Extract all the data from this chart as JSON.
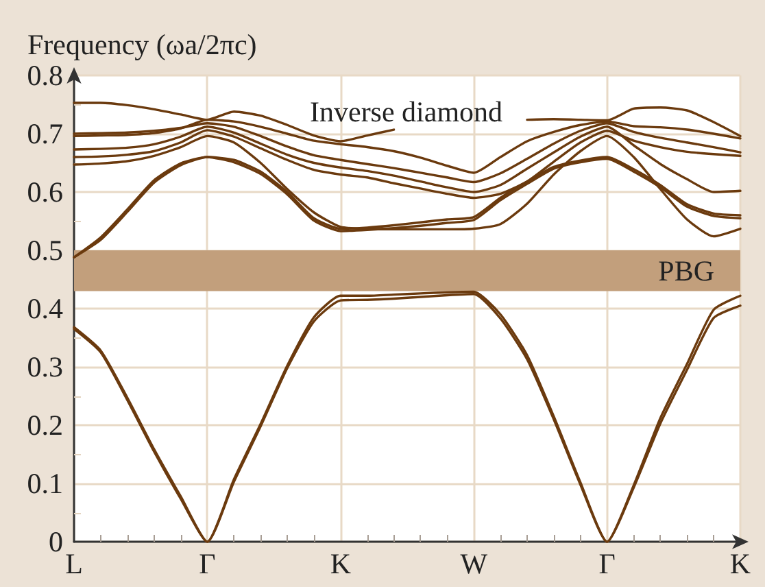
{
  "chart_data": {
    "type": "line",
    "ylabel": "Frequency (ωa/2πc)",
    "annotations": [
      "Inverse diamond"
    ],
    "categories": [
      "L",
      null,
      null,
      null,
      null,
      "Γ",
      null,
      null,
      null,
      null,
      "K",
      null,
      null,
      null,
      null,
      "W",
      null,
      null,
      null,
      null,
      "Γ",
      null,
      null,
      null,
      null,
      "K"
    ],
    "series": [
      {
        "color": "#6b3a0e",
        "values": [
          0.365,
          0.325,
          0.243,
          0.155,
          0.074,
          0,
          0.103,
          0.198,
          0.298,
          0.378,
          0.414,
          0.415,
          0.417,
          0.42,
          0.423,
          0.425,
          0.383,
          0.313,
          0.21,
          0.098,
          0,
          0.093,
          0.203,
          0.295,
          0.384,
          0.405
        ]
      },
      {
        "color": "#6b3a0e",
        "values": [
          0.368,
          0.328,
          0.247,
          0.159,
          0.078,
          0,
          0.107,
          0.202,
          0.302,
          0.385,
          0.422,
          0.422,
          0.424,
          0.426,
          0.428,
          0.429,
          0.39,
          0.32,
          0.215,
          0.102,
          0,
          0.097,
          0.212,
          0.305,
          0.398,
          0.422
        ]
      },
      {
        "color": "#6b3a0e",
        "values": [
          0.488,
          0.522,
          0.57,
          0.62,
          0.649,
          0.66,
          0.655,
          0.635,
          0.6,
          0.555,
          0.537,
          0.539,
          0.543,
          0.548,
          0.553,
          0.557,
          0.59,
          0.618,
          0.643,
          0.654,
          0.66,
          0.639,
          0.612,
          0.579,
          0.563,
          0.56
        ]
      },
      {
        "color": "#6b3a0e",
        "values": [
          0.488,
          0.518,
          0.566,
          0.616,
          0.646,
          0.66,
          0.651,
          0.631,
          0.596,
          0.551,
          0.533,
          0.535,
          0.538,
          0.542,
          0.547,
          0.552,
          0.586,
          0.614,
          0.64,
          0.651,
          0.657,
          0.635,
          0.608,
          0.575,
          0.559,
          0.555
        ]
      },
      {
        "color": "#6b3a0e",
        "values": [
          0.647,
          0.649,
          0.653,
          0.662,
          0.677,
          0.696,
          0.685,
          0.65,
          0.605,
          0.565,
          0.54,
          0.537,
          0.536,
          0.536,
          0.536,
          0.537,
          0.545,
          0.58,
          0.63,
          0.67,
          0.696,
          0.66,
          0.605,
          0.553,
          0.524,
          0.537
        ]
      },
      {
        "color": "#6b3a0e",
        "values": [
          0.66,
          0.661,
          0.664,
          0.67,
          0.685,
          0.706,
          0.695,
          0.675,
          0.655,
          0.638,
          0.63,
          0.625,
          0.615,
          0.606,
          0.597,
          0.59,
          0.597,
          0.618,
          0.652,
          0.685,
          0.705,
          0.688,
          0.677,
          0.669,
          0.665,
          0.662
        ]
      },
      {
        "color": "#6b3a0e",
        "values": [
          0.673,
          0.674,
          0.676,
          0.682,
          0.695,
          0.712,
          0.702,
          0.683,
          0.664,
          0.65,
          0.642,
          0.636,
          0.628,
          0.618,
          0.608,
          0.6,
          0.612,
          0.64,
          0.668,
          0.695,
          0.712,
          0.68,
          0.648,
          0.622,
          0.6,
          0.602
        ]
      },
      {
        "color": "#6b3a0e",
        "values": [
          0.7,
          0.701,
          0.702,
          0.705,
          0.71,
          0.718,
          0.712,
          0.696,
          0.678,
          0.663,
          0.655,
          0.648,
          0.641,
          0.633,
          0.625,
          0.617,
          0.632,
          0.657,
          0.683,
          0.705,
          0.718,
          0.703,
          0.693,
          0.685,
          0.677,
          0.668
        ]
      },
      {
        "color": "#6b3a0e",
        "values": [
          0.696,
          0.697,
          0.698,
          0.701,
          0.709,
          0.724,
          0.721,
          0.712,
          0.7,
          0.688,
          0.682,
          0.677,
          0.67,
          0.659,
          0.645,
          0.633,
          0.66,
          0.687,
          0.703,
          0.715,
          0.721,
          0.713,
          0.711,
          0.707,
          0.7,
          0.692
        ]
      },
      {
        "color": "#6b3a0e",
        "values": [
          0.753,
          0.753,
          0.749,
          0.742,
          0.733,
          0.724,
          0.738,
          0.731,
          0.715,
          0.697,
          0.687,
          0.697,
          0.707,
          null,
          null,
          null,
          null,
          0.724,
          0.725,
          0.724,
          0.723,
          0.743,
          0.745,
          0.74,
          0.72,
          0.696
        ]
      }
    ],
    "ylim": [
      0,
      0.8
    ],
    "yticks": [
      0,
      0.1,
      0.2,
      0.3,
      0.4,
      0.5,
      0.6,
      0.7,
      0.8
    ],
    "bands": [
      {
        "axis": "y",
        "from": 0.43,
        "to": 0.5,
        "label": "PBG",
        "color": "#c29f7c"
      }
    ],
    "grid": true
  }
}
